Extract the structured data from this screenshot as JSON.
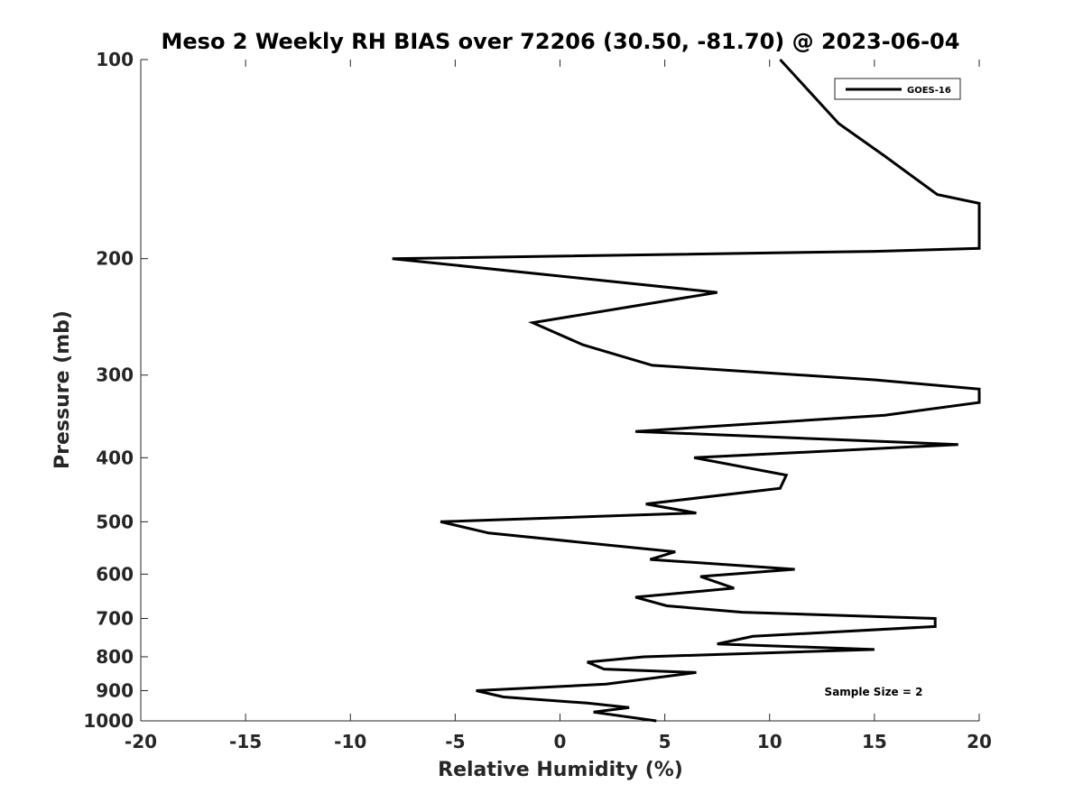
{
  "chart_data": {
    "type": "line",
    "title": "Meso 2 Weekly RH BIAS over 72206 (30.50, -81.70) @ 2023-06-04",
    "xlabel": "Relative Humidity (%)",
    "ylabel": "Pressure (mb)",
    "xlim": [
      -20,
      20
    ],
    "ylim": [
      100,
      1000
    ],
    "y_scale": "log",
    "y_reversed": true,
    "grid": false,
    "legend_position": "top-right",
    "x_ticks": [
      -20,
      -15,
      -10,
      -5,
      0,
      5,
      10,
      15,
      20
    ],
    "y_ticks": [
      100,
      200,
      300,
      400,
      500,
      600,
      700,
      800,
      900,
      1000
    ],
    "series": [
      {
        "name": "GOES-16",
        "color": "#000000",
        "points": [
          {
            "x": 10.5,
            "y": 100
          },
          {
            "x": 13.3,
            "y": 125
          },
          {
            "x": 15.5,
            "y": 140
          },
          {
            "x": 18.0,
            "y": 160
          },
          {
            "x": 20.0,
            "y": 165
          },
          {
            "x": 20.0,
            "y": 193
          },
          {
            "x": 15.0,
            "y": 195
          },
          {
            "x": -8.0,
            "y": 200
          },
          {
            "x": 7.5,
            "y": 225
          },
          {
            "x": -1.3,
            "y": 250
          },
          {
            "x": 1.1,
            "y": 270
          },
          {
            "x": 4.4,
            "y": 290
          },
          {
            "x": 15.0,
            "y": 305
          },
          {
            "x": 20.0,
            "y": 315
          },
          {
            "x": 20.0,
            "y": 330
          },
          {
            "x": 15.5,
            "y": 345
          },
          {
            "x": 3.6,
            "y": 365
          },
          {
            "x": 19.0,
            "y": 382
          },
          {
            "x": 6.4,
            "y": 400
          },
          {
            "x": 10.8,
            "y": 425
          },
          {
            "x": 10.5,
            "y": 445
          },
          {
            "x": 4.1,
            "y": 470
          },
          {
            "x": 6.5,
            "y": 485
          },
          {
            "x": -5.7,
            "y": 500
          },
          {
            "x": -3.4,
            "y": 520
          },
          {
            "x": 5.5,
            "y": 555
          },
          {
            "x": 4.3,
            "y": 570
          },
          {
            "x": 11.2,
            "y": 590
          },
          {
            "x": 6.7,
            "y": 605
          },
          {
            "x": 8.3,
            "y": 630
          },
          {
            "x": 3.6,
            "y": 650
          },
          {
            "x": 5.1,
            "y": 670
          },
          {
            "x": 8.7,
            "y": 685
          },
          {
            "x": 17.9,
            "y": 700
          },
          {
            "x": 17.9,
            "y": 720
          },
          {
            "x": 9.2,
            "y": 745
          },
          {
            "x": 7.5,
            "y": 765
          },
          {
            "x": 15.0,
            "y": 780
          },
          {
            "x": 4.0,
            "y": 800
          },
          {
            "x": 1.3,
            "y": 815
          },
          {
            "x": 2.1,
            "y": 835
          },
          {
            "x": 6.5,
            "y": 845
          },
          {
            "x": 2.2,
            "y": 880
          },
          {
            "x": -4.0,
            "y": 900
          },
          {
            "x": -2.7,
            "y": 920
          },
          {
            "x": 1.3,
            "y": 940
          },
          {
            "x": 3.3,
            "y": 955
          },
          {
            "x": 1.6,
            "y": 970
          },
          {
            "x": 4.6,
            "y": 1000
          }
        ]
      }
    ],
    "legend": {
      "label": "GOES-16"
    },
    "annotations": [
      "Sample Size = 2"
    ]
  }
}
